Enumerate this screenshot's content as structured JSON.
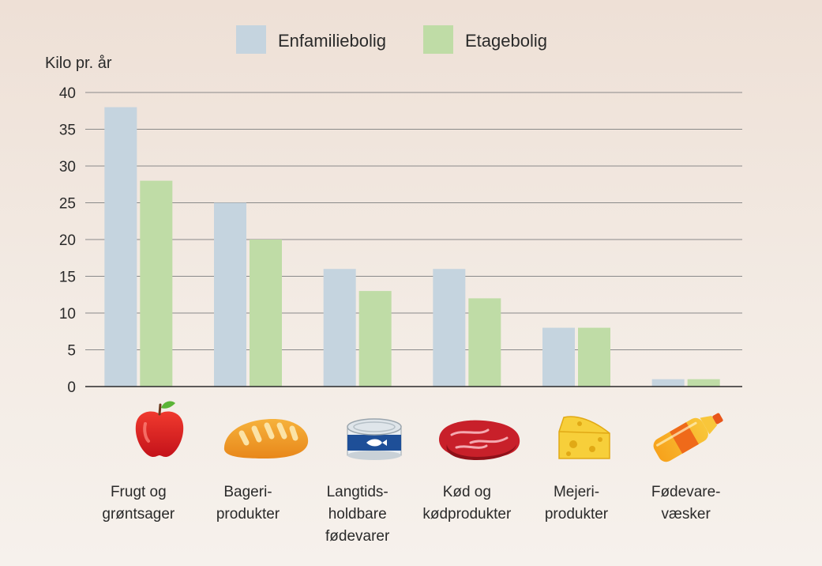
{
  "chart_data": {
    "type": "bar",
    "ylabel": "Kilo pr. år",
    "ylim": [
      0,
      40
    ],
    "yticks": [
      0,
      5,
      10,
      15,
      20,
      25,
      30,
      35,
      40
    ],
    "grid": true,
    "legend_position": "top-center",
    "categories": [
      [
        "Frugt og",
        "grøntsager"
      ],
      [
        "Bageri-",
        "produkter"
      ],
      [
        "Langtids-",
        "holdbare",
        "fødevarer"
      ],
      [
        "Kød og",
        "kødprodukter"
      ],
      [
        "Mejeri-",
        "produkter"
      ],
      [
        "Fødevare-",
        "væsker"
      ]
    ],
    "category_icons": [
      "apple-icon",
      "bread-icon",
      "tin-can-icon",
      "meat-icon",
      "cheese-icon",
      "bottle-icon"
    ],
    "series": [
      {
        "name": "Enfamiliebolig",
        "color": "#c5d4df",
        "values": [
          38,
          25,
          16,
          16,
          8,
          1
        ]
      },
      {
        "name": "Etagebolig",
        "color": "#bfdca6",
        "values": [
          28,
          20,
          13,
          12,
          8,
          1
        ]
      }
    ]
  }
}
